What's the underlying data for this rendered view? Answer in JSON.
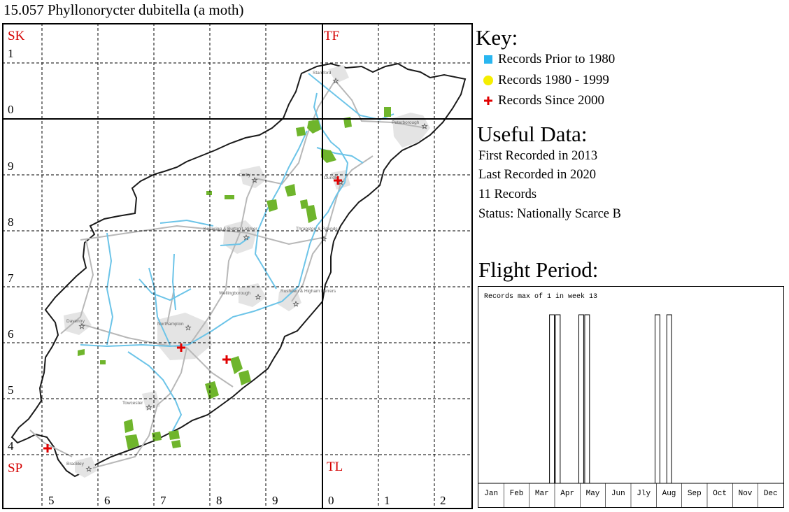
{
  "title": "15.057 Phyllonorycter dubitella (a moth)",
  "map": {
    "square_labels": {
      "sk": "SK",
      "tf": "TF",
      "sp": "SP",
      "tl": "TL"
    },
    "row_labels": [
      "1",
      "0",
      "9",
      "8",
      "7",
      "6",
      "5",
      "4"
    ],
    "col_labels": [
      "5",
      "6",
      "7",
      "8",
      "9",
      "0",
      "1",
      "2"
    ],
    "towns": [
      "Stamford",
      "Peterborough",
      "Corby",
      "Oundle",
      "Kettering & Burton Latimer",
      "Thrapston & Raunds",
      "Wellingborough",
      "Rushden & Higham Ferrers",
      "Daventry",
      "Northampton",
      "Towcester",
      "Brackley"
    ],
    "colors": {
      "boundary": "#1a1a1a",
      "river": "#6cc4e8",
      "road": "#b8b8b8",
      "urban": "#e4e4e4",
      "woodland": "#6fb52c",
      "record": "#e00000"
    }
  },
  "key": {
    "title": "Key:",
    "items": [
      {
        "label": "Records Prior to 1980",
        "symbol": "square-icon",
        "color": "#29b6f0"
      },
      {
        "label": "Records 1980 - 1999",
        "symbol": "circle-icon",
        "color": "#f5ee00"
      },
      {
        "label": "Records Since 2000",
        "symbol": "cross-icon",
        "color": "#e00000"
      }
    ]
  },
  "useful": {
    "title": "Useful Data:",
    "first_recorded": "First Recorded in 2013",
    "last_recorded": "Last Recorded in 2020",
    "records": "11 Records",
    "status": "Status: Nationally Scarce B"
  },
  "flight": {
    "title": "Flight Period:",
    "note": "Records max of 1 in week 13"
  },
  "chart_data": {
    "type": "bar",
    "title": "Records max of 1 in week 13",
    "x_unit": "week",
    "month_labels": [
      "Jan",
      "Feb",
      "Mar",
      "Apr",
      "May",
      "Jun",
      "Jly",
      "Aug",
      "Sep",
      "Oct",
      "Nov",
      "Dec"
    ],
    "weeks": [
      13,
      14,
      18,
      19,
      31,
      33
    ],
    "values": [
      1,
      1,
      1,
      1,
      1,
      1
    ],
    "ylim": [
      0,
      1
    ]
  }
}
